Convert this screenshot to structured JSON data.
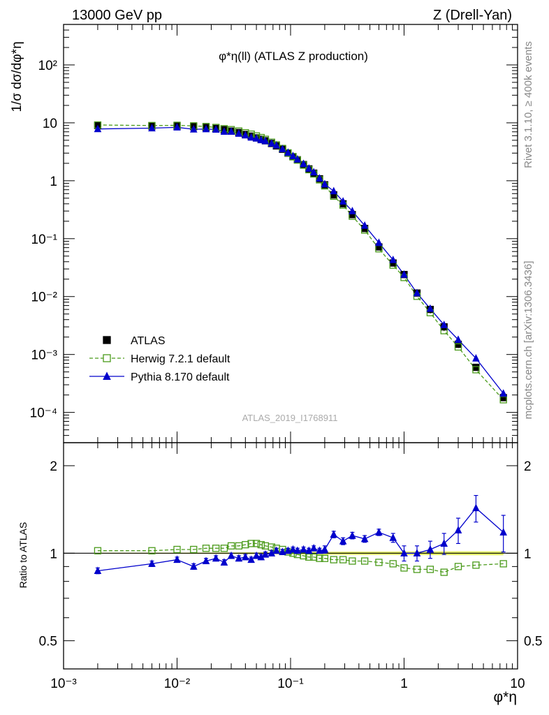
{
  "header": {
    "left": "13000 GeV pp",
    "right": "Z (Drell-Yan)"
  },
  "side_text": {
    "rivet": "Rivet 3.1.10, ≥ 400k events",
    "mcplots": "mcplots.cern.ch [arXiv:1306.3436]"
  },
  "watermark": "ATLAS_2019_I1768911",
  "colors": {
    "atlas": "#000000",
    "herwig": "#4a9a1a",
    "pythia": "#0000cc",
    "band": "#e6f26b"
  },
  "chart_data": [
    {
      "type": "scatter",
      "panel": "main",
      "title": "φ*η(ll) (ATLAS Z production)",
      "ylabel": "1/σ dσ/dφ*η",
      "xlabel": "φ*η",
      "xscale": "log",
      "yscale": "log",
      "xlim": [
        0.001,
        10
      ],
      "ylim": [
        3e-05,
        500
      ],
      "x_tick_labels": [
        "10⁻³",
        "10⁻²",
        "10⁻¹",
        "1",
        "10"
      ],
      "y_tick_labels": [
        "10⁻⁴",
        "10⁻³",
        "10⁻²",
        "10⁻¹",
        "1",
        "10",
        "10²"
      ],
      "legend_position": "lower-left",
      "series": [
        {
          "name": "ATLAS",
          "marker": "filled-square",
          "x": [
            0.002,
            0.006,
            0.01,
            0.014,
            0.018,
            0.022,
            0.026,
            0.03,
            0.035,
            0.04,
            0.045,
            0.05,
            0.055,
            0.06,
            0.068,
            0.075,
            0.085,
            0.095,
            0.105,
            0.115,
            0.13,
            0.145,
            0.16,
            0.18,
            0.2,
            0.24,
            0.29,
            0.35,
            0.45,
            0.6,
            0.8,
            1.0,
            1.3,
            1.7,
            2.25,
            3.0,
            4.3,
            7.5
          ],
          "y": [
            9.0,
            8.8,
            8.8,
            8.6,
            8.3,
            8.0,
            7.6,
            7.2,
            6.8,
            6.3,
            5.9,
            5.5,
            5.2,
            4.9,
            4.4,
            4.0,
            3.5,
            3.0,
            2.6,
            2.3,
            1.9,
            1.6,
            1.35,
            1.08,
            0.85,
            0.57,
            0.4,
            0.26,
            0.15,
            0.072,
            0.038,
            0.024,
            0.0115,
            0.006,
            0.003,
            0.0015,
            0.0006,
            0.00018
          ]
        },
        {
          "name": "Herwig 7.2.1 default",
          "marker": "open-square",
          "line": "dashed",
          "x": [
            0.002,
            0.006,
            0.01,
            0.014,
            0.018,
            0.022,
            0.026,
            0.03,
            0.035,
            0.04,
            0.045,
            0.05,
            0.055,
            0.06,
            0.068,
            0.075,
            0.085,
            0.095,
            0.105,
            0.115,
            0.13,
            0.145,
            0.16,
            0.18,
            0.2,
            0.24,
            0.29,
            0.35,
            0.45,
            0.6,
            0.8,
            1.0,
            1.3,
            1.7,
            2.25,
            3.0,
            4.3,
            7.5
          ],
          "ratio": [
            1.02,
            1.02,
            1.03,
            1.03,
            1.04,
            1.04,
            1.04,
            1.06,
            1.06,
            1.07,
            1.08,
            1.08,
            1.07,
            1.06,
            1.05,
            1.04,
            1.03,
            1.01,
            1.0,
            0.99,
            0.98,
            0.97,
            0.97,
            0.96,
            0.96,
            0.95,
            0.95,
            0.94,
            0.94,
            0.93,
            0.92,
            0.89,
            0.88,
            0.88,
            0.86,
            0.9,
            0.91,
            0.92
          ]
        },
        {
          "name": "Pythia 8.170 default",
          "marker": "filled-triangle",
          "line": "solid",
          "x": [
            0.002,
            0.006,
            0.01,
            0.014,
            0.018,
            0.022,
            0.026,
            0.03,
            0.035,
            0.04,
            0.045,
            0.05,
            0.055,
            0.06,
            0.068,
            0.075,
            0.085,
            0.095,
            0.105,
            0.115,
            0.13,
            0.145,
            0.16,
            0.18,
            0.2,
            0.24,
            0.29,
            0.35,
            0.45,
            0.6,
            0.8,
            1.0,
            1.3,
            1.7,
            2.25,
            3.0,
            4.3,
            7.5
          ],
          "ratio": [
            0.87,
            0.92,
            0.95,
            0.9,
            0.94,
            0.96,
            0.93,
            0.98,
            0.96,
            0.97,
            0.95,
            0.98,
            0.97,
            0.99,
            1.0,
            1.02,
            1.01,
            1.02,
            1.03,
            1.02,
            1.03,
            1.02,
            1.04,
            1.02,
            1.03,
            1.16,
            1.1,
            1.15,
            1.12,
            1.18,
            1.13,
            1.0,
            1.0,
            1.03,
            1.08,
            1.2,
            1.43,
            1.18
          ],
          "ratio_err": [
            0.02,
            0.02,
            0.02,
            0.02,
            0.02,
            0.02,
            0.02,
            0.02,
            0.02,
            0.02,
            0.02,
            0.02,
            0.02,
            0.02,
            0.02,
            0.02,
            0.02,
            0.02,
            0.02,
            0.02,
            0.02,
            0.02,
            0.02,
            0.02,
            0.03,
            0.03,
            0.03,
            0.03,
            0.03,
            0.03,
            0.04,
            0.06,
            0.06,
            0.07,
            0.09,
            0.12,
            0.15,
            0.17
          ]
        }
      ]
    },
    {
      "type": "scatter",
      "panel": "ratio",
      "ylabel": "Ratio to ATLAS",
      "xscale": "log",
      "yscale": "log",
      "xlim": [
        0.001,
        10
      ],
      "ylim": [
        0.4,
        2.4
      ],
      "y_tick_labels": [
        "0.5",
        "1",
        "2"
      ],
      "reference_line": 1.0
    }
  ]
}
